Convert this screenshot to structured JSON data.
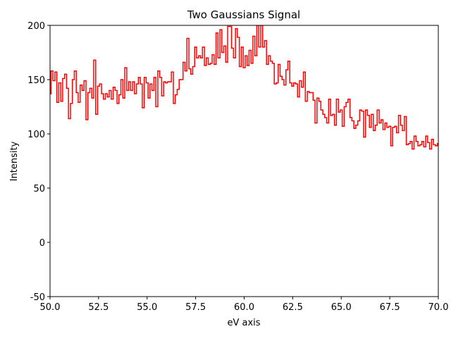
{
  "chart_data": {
    "type": "step",
    "title": "Two Gaussians Signal",
    "x_label": "eV axis",
    "y_label": "Intensity",
    "x": [
      50,
      50.1,
      50.2,
      50.3,
      50.4,
      50.5,
      50.6,
      50.7,
      50.8,
      50.9,
      51,
      51.1,
      51.2,
      51.3,
      51.4,
      51.5,
      51.6,
      51.7,
      51.8,
      51.9,
      52,
      52.1,
      52.2,
      52.3,
      52.4,
      52.5,
      52.6,
      52.7,
      52.8,
      52.9,
      53,
      53.1,
      53.2,
      53.3,
      53.4,
      53.5,
      53.6,
      53.7,
      53.8,
      53.9,
      54,
      54.1,
      54.2,
      54.3,
      54.4,
      54.5,
      54.6,
      54.7,
      54.8,
      54.9,
      55,
      55.1,
      55.2,
      55.3,
      55.4,
      55.5,
      55.6,
      55.7,
      55.8,
      55.9,
      56,
      56.1,
      56.2,
      56.3,
      56.4,
      56.5,
      56.6,
      56.7,
      56.8,
      56.9,
      57,
      57.1,
      57.2,
      57.3,
      57.4,
      57.5,
      57.6,
      57.7,
      57.8,
      57.9,
      58,
      58.1,
      58.2,
      58.3,
      58.4,
      58.5,
      58.6,
      58.7,
      58.8,
      58.9,
      59,
      59.1,
      59.2,
      59.3,
      59.4,
      59.5,
      59.6,
      59.7,
      59.8,
      59.9,
      60,
      60.1,
      60.2,
      60.3,
      60.4,
      60.5,
      60.6,
      60.7,
      60.8,
      60.9,
      61,
      61.1,
      61.2,
      61.3,
      61.4,
      61.5,
      61.6,
      61.7,
      61.8,
      61.9,
      62,
      62.1,
      62.2,
      62.3,
      62.4,
      62.5,
      62.6,
      62.7,
      62.8,
      62.9,
      63,
      63.1,
      63.2,
      63.3,
      63.4,
      63.5,
      63.6,
      63.7,
      63.8,
      63.9,
      64,
      64.1,
      64.2,
      64.3,
      64.4,
      64.5,
      64.6,
      64.7,
      64.8,
      64.9,
      65,
      65.1,
      65.2,
      65.3,
      65.4,
      65.5,
      65.6,
      65.7,
      65.8,
      65.9,
      66,
      66.1,
      66.2,
      66.3,
      66.4,
      66.5,
      66.6,
      66.7,
      66.8,
      66.9,
      67,
      67.1,
      67.2,
      67.3,
      67.4,
      67.5,
      67.6,
      67.7,
      67.8,
      67.9,
      68,
      68.1,
      68.2,
      68.3,
      68.4,
      68.5,
      68.6,
      68.7,
      68.8,
      68.9,
      69,
      69.1,
      69.2,
      69.3,
      69.4,
      69.5,
      69.6,
      69.7,
      69.8,
      69.9,
      70
    ],
    "series": [
      {
        "color": "#ff0000",
        "values": [
          137,
          158,
          149,
          157,
          129,
          147,
          130,
          151,
          155,
          142,
          114,
          128,
          150,
          158,
          138,
          129,
          145,
          140,
          149,
          113,
          138,
          142,
          133,
          168,
          118,
          144,
          146,
          137,
          132,
          137,
          134,
          140,
          132,
          143,
          140,
          128,
          136,
          150,
          133,
          161,
          140,
          148,
          140,
          148,
          137,
          146,
          152,
          146,
          124,
          152,
          147,
          133,
          146,
          140,
          152,
          125,
          158,
          152,
          135,
          148,
          147,
          148,
          148,
          157,
          128,
          136,
          141,
          150,
          150,
          166,
          158,
          188,
          160,
          155,
          162,
          180,
          170,
          172,
          170,
          180,
          163,
          170,
          164,
          165,
          173,
          164,
          193,
          170,
          196,
          175,
          181,
          166,
          199,
          199,
          179,
          170,
          197,
          189,
          162,
          180,
          161,
          172,
          163,
          177,
          165,
          190,
          172,
          200,
          180,
          200,
          180,
          186,
          164,
          172,
          167,
          165,
          146,
          147,
          164,
          153,
          150,
          145,
          159,
          167,
          147,
          144,
          147,
          146,
          134,
          149,
          143,
          157,
          130,
          139,
          138,
          138,
          131,
          110,
          133,
          130,
          122,
          118,
          115,
          110,
          132,
          117,
          118,
          108,
          132,
          120,
          122,
          107,
          125,
          129,
          132,
          115,
          112,
          105,
          108,
          112,
          122,
          121,
          97,
          122,
          117,
          106,
          118,
          103,
          108,
          122,
          110,
          113,
          104,
          110,
          106,
          107,
          89,
          106,
          107,
          101,
          117,
          108,
          103,
          116,
          90,
          91,
          93,
          86,
          98,
          93,
          89,
          90,
          93,
          88,
          98,
          92,
          86,
          95,
          90,
          89,
          91
        ]
      }
    ],
    "xlim": [
      50,
      70
    ],
    "ylim": [
      -50,
      200
    ],
    "xticks": [
      {
        "value": 50,
        "label": "50.0"
      },
      {
        "value": 52.5,
        "label": "52.5"
      },
      {
        "value": 55,
        "label": "55.0"
      },
      {
        "value": 57.5,
        "label": "57.5"
      },
      {
        "value": 60,
        "label": "60.0"
      },
      {
        "value": 62.5,
        "label": "62.5"
      },
      {
        "value": 65,
        "label": "65.0"
      },
      {
        "value": 67.5,
        "label": "67.5"
      },
      {
        "value": 70,
        "label": "70.0"
      }
    ],
    "yticks": [
      -50,
      0,
      50,
      100,
      150,
      200
    ]
  }
}
